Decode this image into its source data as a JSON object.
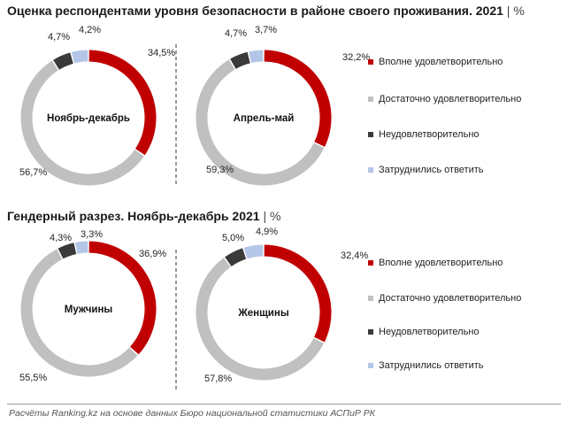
{
  "colors": {
    "vpolne": "#c00000",
    "dostatochno": "#c0c0c0",
    "neudovl": "#3a3a3a",
    "zatrud": "#b4c6e7"
  },
  "sections": [
    {
      "title": "Оценка респондентами уровня безопасности в районе своего проживания. 2021",
      "unit": "%"
    },
    {
      "title": "Гендерный разрез. Ноябрь-декабрь 2021",
      "unit": "%"
    }
  ],
  "legend": {
    "items": [
      {
        "label": "Вполне удовлетворительно",
        "color": "#c00000"
      },
      {
        "label": "Достаточно удовлетворительно",
        "color": "#c0c0c0"
      },
      {
        "label": "Неудовлетворительно",
        "color": "#3a3a3a"
      },
      {
        "label": "Затруднились ответить",
        "color": "#b4c6e7"
      }
    ]
  },
  "chart_data": [
    {
      "type": "pie",
      "center_label": "Ноябрь-декабрь",
      "labels": [
        "Вполне удовлетворительно",
        "Достаточно удовлетворительно",
        "Неудовлетворительно",
        "Затруднились ответить"
      ],
      "values": [
        34.5,
        56.7,
        4.7,
        4.2
      ],
      "value_labels": [
        "34,5%",
        "56,7%",
        "4,7%",
        "4,2%"
      ]
    },
    {
      "type": "pie",
      "center_label": "Апрель-май",
      "labels": [
        "Вполне удовлетворительно",
        "Достаточно удовлетворительно",
        "Неудовлетворительно",
        "Затруднились ответить"
      ],
      "values": [
        32.2,
        59.3,
        4.7,
        3.7
      ],
      "value_labels": [
        "32,2%",
        "59,3%",
        "4,7%",
        "3,7%"
      ]
    },
    {
      "type": "pie",
      "center_label": "Мужчины",
      "labels": [
        "Вполне удовлетворительно",
        "Достаточно удовлетворительно",
        "Неудовлетворительно",
        "Затруднились ответить"
      ],
      "values": [
        36.9,
        55.5,
        4.3,
        3.3
      ],
      "value_labels": [
        "36,9%",
        "55,5%",
        "4,3%",
        "3,3%"
      ]
    },
    {
      "type": "pie",
      "center_label": "Женщины",
      "labels": [
        "Вполне удовлетворительно",
        "Достаточно удовлетворительно",
        "Неудовлетворительно",
        "Затруднились ответить"
      ],
      "values": [
        32.4,
        57.8,
        5.0,
        4.9
      ],
      "value_labels": [
        "32,4%",
        "57,8%",
        "5,0%",
        "4,9%"
      ]
    }
  ],
  "source": "Расчёты Ranking.kz на основе данных Бюро национальной статистики АСПиР РК"
}
